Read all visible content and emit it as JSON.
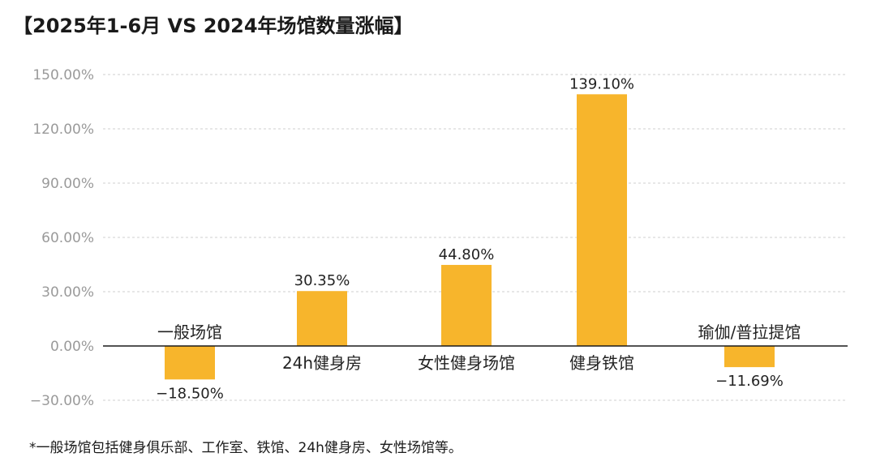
{
  "chart_data": {
    "type": "bar",
    "title": "【2025年1-6月 VS 2024年场馆数量涨幅】",
    "categories": [
      "一般场馆",
      "24h健身房",
      "女性健身场馆",
      "健身铁馆",
      "瑜伽/普拉提馆"
    ],
    "values": [
      -18.5,
      30.35,
      44.8,
      139.1,
      -11.69
    ],
    "value_labels": [
      "−18.50%",
      "30.35%",
      "44.80%",
      "139.10%",
      "−11.69%"
    ],
    "yticks": [
      150,
      120,
      90,
      60,
      30,
      0,
      -30
    ],
    "ytick_labels": [
      "150.00%",
      "120.00%",
      "90.00%",
      "60.00%",
      "30.00%",
      "0.00%",
      "−30.00%"
    ],
    "ylim": [
      -30,
      150
    ],
    "grid": true,
    "bar_color": "#F7B52C",
    "xlabel": "",
    "ylabel": "",
    "footnote": "*一般场馆包括健身俱乐部、工作室、铁馆、24h健身房、女性场馆等。"
  }
}
